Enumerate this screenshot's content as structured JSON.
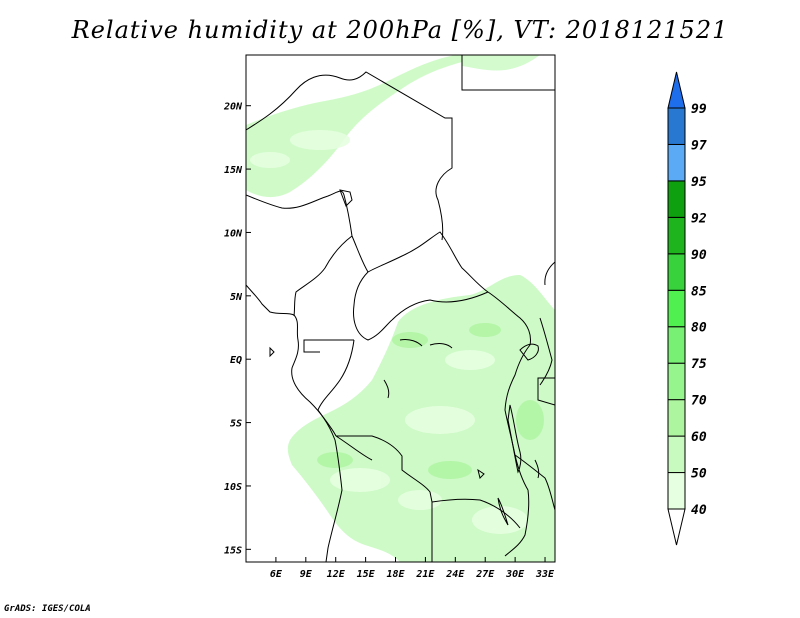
{
  "title": "Relative humidity at 200hPa [%], VT: 2018121521",
  "footer": "GrADS: IGES/COLA",
  "map": {
    "lon_range": [
      3,
      34
    ],
    "lat_range": [
      -16,
      24
    ],
    "lon_ticks": [
      "6E",
      "9E",
      "12E",
      "15E",
      "18E",
      "21E",
      "24E",
      "27E",
      "30E",
      "33E"
    ],
    "lat_ticks": [
      "20N",
      "15N",
      "10N",
      "5N",
      "EQ",
      "5S",
      "10S",
      "15S"
    ],
    "shaded_regions": [
      "northwest-band",
      "equatorial-africa",
      "east-africa"
    ]
  },
  "colorbar": {
    "levels": [
      "40",
      "50",
      "60",
      "70",
      "75",
      "80",
      "85",
      "90",
      "92",
      "95",
      "97",
      "99"
    ],
    "colors": [
      "#ffffff",
      "#e6ffe0",
      "#c8fac0",
      "#aef5a0",
      "#96f58c",
      "#78f073",
      "#50f050",
      "#37d23c",
      "#1eb41e",
      "#0fa00f",
      "#5aaaf5",
      "#2878d2",
      "#1e6eeb"
    ]
  }
}
